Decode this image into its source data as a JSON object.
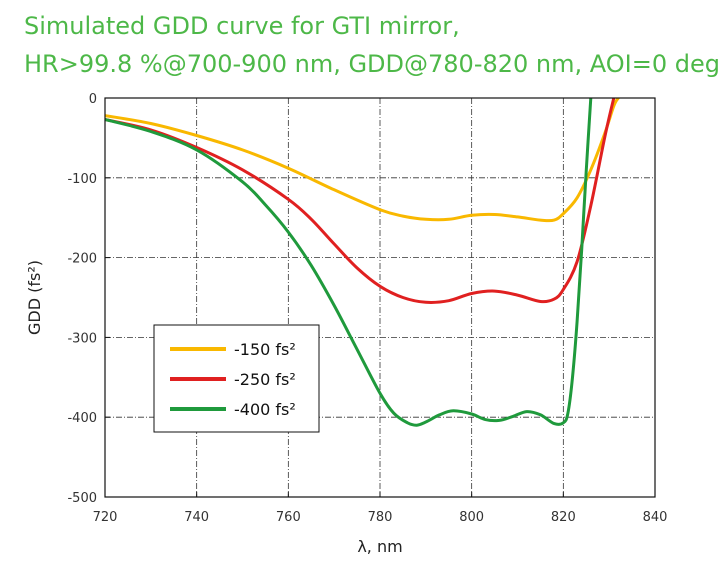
{
  "title_lines": [
    "Simulated GDD curve for GTI mirror,",
    "HR>99.8 %@700-900 nm, GDD@780-820 nm, AOI=0 deg"
  ],
  "chart_data": {
    "type": "line",
    "title": "Simulated GDD curve for GTI mirror, HR>99.8 %@700-900 nm, GDD@780-820 nm, AOI=0 deg",
    "xlabel": "λ, nm",
    "ylabel": "GDD (fs²)",
    "xlim": [
      720,
      840
    ],
    "ylim": [
      -500,
      0
    ],
    "xticks": [
      720,
      740,
      760,
      780,
      800,
      820,
      840
    ],
    "yticks": [
      0,
      -100,
      -200,
      -300,
      -400,
      -500
    ],
    "grid": true,
    "legend_position": "center-left",
    "series": [
      {
        "name": "-150 fs²",
        "color": "#f9b800",
        "x": [
          720,
          730,
          740,
          750,
          760,
          770,
          780,
          785,
          790,
          795,
          800,
          805,
          810,
          815,
          818,
          820,
          823,
          826,
          829,
          831,
          832
        ],
        "y": [
          -22,
          -32,
          -47,
          -65,
          -88,
          -115,
          -140,
          -148,
          -152,
          -152,
          -147,
          -146,
          -149,
          -153,
          -153,
          -145,
          -125,
          -90,
          -45,
          -10,
          0
        ]
      },
      {
        "name": "-250 fs²",
        "color": "#e02020",
        "x": [
          720,
          730,
          740,
          750,
          760,
          765,
          770,
          775,
          780,
          785,
          790,
          795,
          800,
          805,
          810,
          815,
          818,
          820,
          823,
          826,
          829,
          831
        ],
        "y": [
          -27,
          -40,
          -62,
          -90,
          -127,
          -152,
          -183,
          -213,
          -236,
          -250,
          -256,
          -254,
          -245,
          -242,
          -247,
          -255,
          -252,
          -240,
          -205,
          -135,
          -50,
          0
        ]
      },
      {
        "name": "-400 fs²",
        "color": "#1f9a3c",
        "x": [
          720,
          730,
          740,
          750,
          755,
          760,
          765,
          770,
          775,
          780,
          783,
          786,
          788,
          790,
          793,
          796,
          800,
          803,
          806,
          809,
          812,
          815,
          818,
          820,
          821,
          822,
          823,
          824,
          825,
          826
        ],
        "y": [
          -27,
          -42,
          -65,
          -105,
          -134,
          -168,
          -210,
          -260,
          -315,
          -370,
          -395,
          -407,
          -410,
          -406,
          -397,
          -392,
          -396,
          -403,
          -404,
          -399,
          -393,
          -397,
          -408,
          -407,
          -395,
          -350,
          -280,
          -190,
          -90,
          0
        ]
      }
    ]
  }
}
